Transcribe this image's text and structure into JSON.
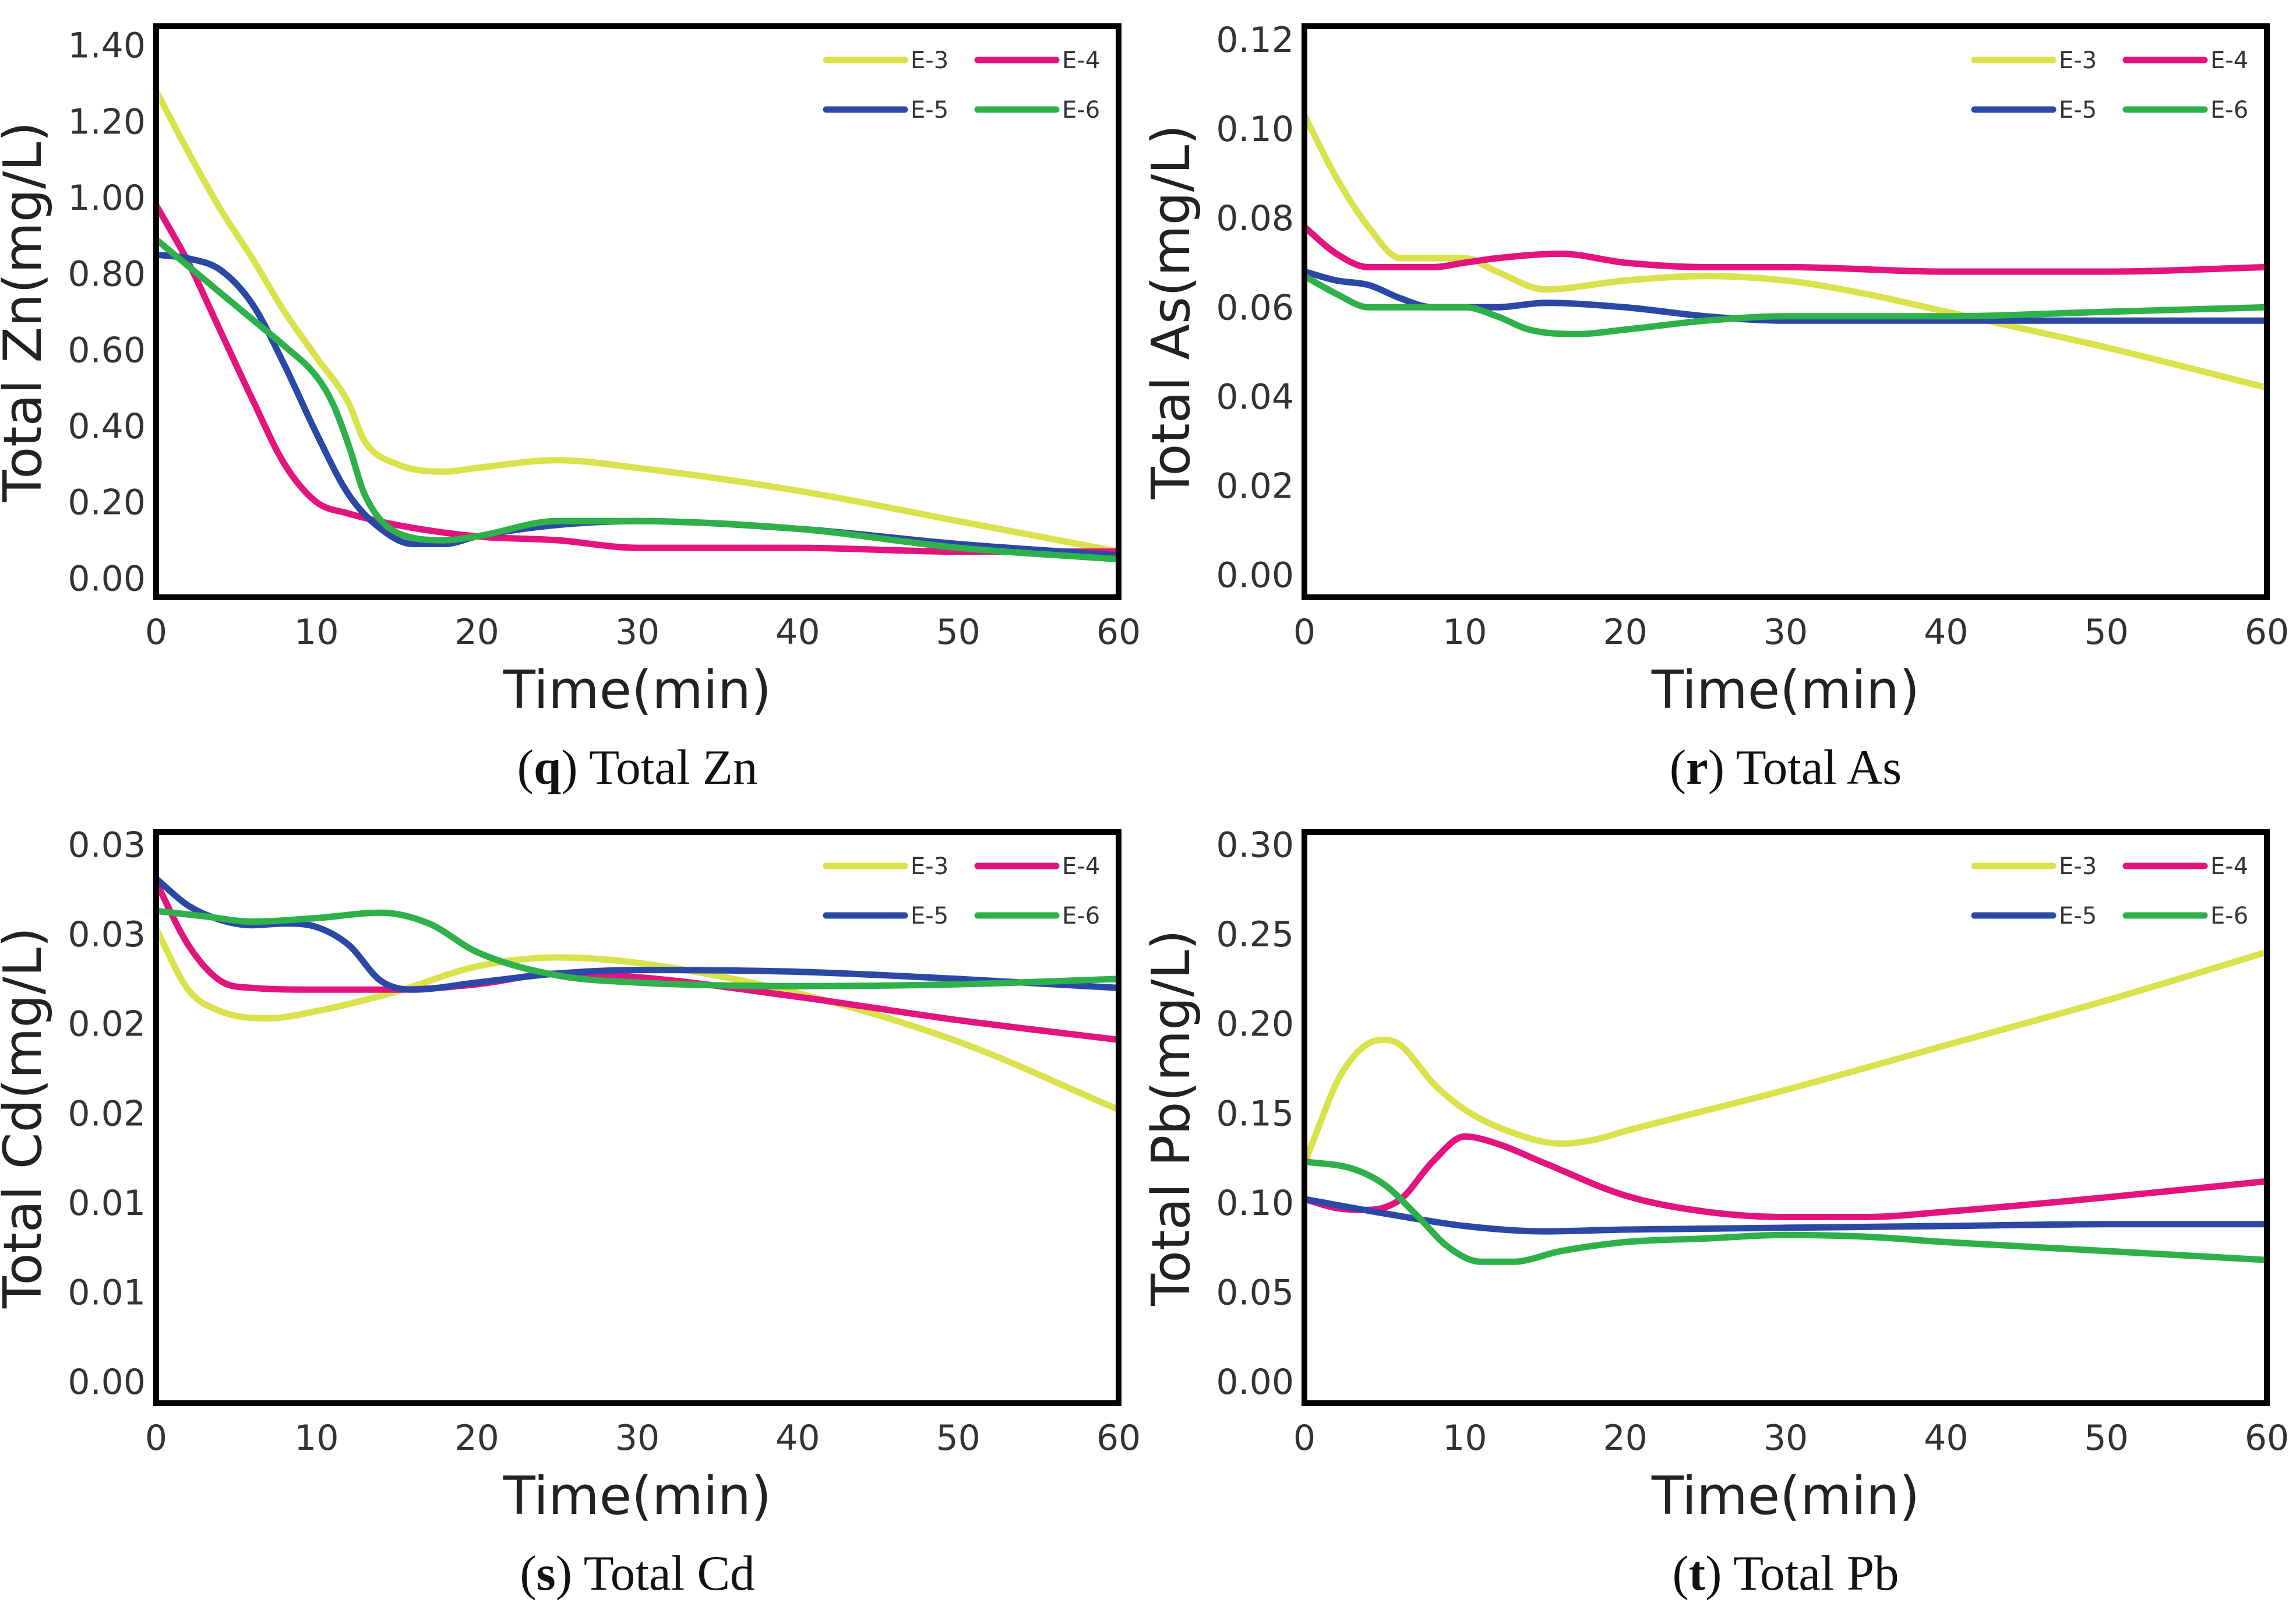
{
  "colors": {
    "E-3": "#d9e14b",
    "E-4": "#e3147d",
    "E-5": "#2b48a6",
    "E-6": "#2eb14a"
  },
  "chart_data": [
    {
      "type": "line",
      "caption_letter": "q",
      "caption_text": "Total Zn",
      "caption_open": "(",
      "caption_close": ")",
      "xlabel": "Time(min)",
      "ylabel": "Total Zn(mg/L)",
      "xlim": [
        0,
        60
      ],
      "ylim": [
        -0.05,
        1.45
      ],
      "xticks": [
        0,
        10,
        20,
        30,
        40,
        50,
        60
      ],
      "xtick_labels": [
        "0",
        "10",
        "20",
        "30",
        "40",
        "50",
        "60"
      ],
      "yticks": [
        0,
        0.2,
        0.4,
        0.6,
        0.8,
        1.0,
        1.2,
        1.4
      ],
      "ytick_labels": [
        "0.00",
        "0.20",
        "0.40",
        "0.60",
        "0.80",
        "1.00",
        "1.20",
        "1.40"
      ],
      "legend": [
        "E-3",
        "E-4",
        "E-5",
        "E-6"
      ],
      "series": [
        {
          "name": "E-3",
          "x": [
            0,
            2,
            4,
            6,
            8,
            10,
            12,
            13,
            15,
            18,
            20,
            25,
            30,
            40,
            50,
            60
          ],
          "values": [
            1.28,
            1.12,
            0.97,
            0.84,
            0.7,
            0.58,
            0.46,
            0.36,
            0.3,
            0.28,
            0.29,
            0.31,
            0.29,
            0.23,
            0.15,
            0.07
          ]
        },
        {
          "name": "E-4",
          "x": [
            0,
            2,
            4,
            6,
            8,
            10,
            12,
            15,
            20,
            25,
            30,
            35,
            40,
            50,
            60
          ],
          "values": [
            0.98,
            0.83,
            0.65,
            0.47,
            0.3,
            0.2,
            0.17,
            0.14,
            0.11,
            0.1,
            0.08,
            0.08,
            0.08,
            0.07,
            0.07
          ]
        },
        {
          "name": "E-5",
          "x": [
            0,
            2,
            4,
            6,
            8,
            10,
            12,
            14,
            16,
            18,
            20,
            25,
            30,
            40,
            50,
            60
          ],
          "values": [
            0.85,
            0.84,
            0.81,
            0.72,
            0.56,
            0.38,
            0.22,
            0.13,
            0.09,
            0.09,
            0.11,
            0.14,
            0.15,
            0.13,
            0.09,
            0.06
          ]
        },
        {
          "name": "E-6",
          "x": [
            0,
            2,
            4,
            6,
            8,
            10,
            11,
            12,
            13,
            15,
            18,
            20,
            25,
            30,
            40,
            50,
            60
          ],
          "values": [
            0.89,
            0.82,
            0.75,
            0.68,
            0.61,
            0.53,
            0.46,
            0.35,
            0.22,
            0.12,
            0.1,
            0.11,
            0.15,
            0.15,
            0.13,
            0.08,
            0.05
          ]
        }
      ]
    },
    {
      "type": "line",
      "caption_letter": "r",
      "caption_text": "Total As",
      "caption_open": "(",
      "caption_close": ")",
      "xlabel": "Time(min)",
      "ylabel": "Total As(mg/L)",
      "xlim": [
        0,
        60
      ],
      "ylim": [
        -0.005,
        0.123
      ],
      "xticks": [
        0,
        10,
        20,
        30,
        40,
        50,
        60
      ],
      "xtick_labels": [
        "0",
        "10",
        "20",
        "30",
        "40",
        "50",
        "60"
      ],
      "yticks": [
        0,
        0.02,
        0.04,
        0.06,
        0.08,
        0.1,
        0.12
      ],
      "ytick_labels": [
        "0.00",
        "0.02",
        "0.04",
        "0.06",
        "0.08",
        "0.10",
        "0.12"
      ],
      "legend": [
        "E-3",
        "E-4",
        "E-5",
        "E-6"
      ],
      "series": [
        {
          "name": "E-3",
          "x": [
            0,
            2,
            4,
            6,
            8,
            10,
            12,
            15,
            20,
            25,
            30,
            35,
            40,
            50,
            60
          ],
          "values": [
            0.103,
            0.089,
            0.078,
            0.071,
            0.071,
            0.071,
            0.068,
            0.064,
            0.066,
            0.067,
            0.066,
            0.063,
            0.059,
            0.051,
            0.042
          ]
        },
        {
          "name": "E-4",
          "x": [
            0,
            2,
            4,
            6,
            8,
            10,
            12,
            16,
            20,
            25,
            30,
            40,
            50,
            60
          ],
          "values": [
            0.078,
            0.072,
            0.069,
            0.069,
            0.069,
            0.07,
            0.071,
            0.072,
            0.07,
            0.069,
            0.069,
            0.068,
            0.068,
            0.069
          ]
        },
        {
          "name": "E-5",
          "x": [
            0,
            2,
            4,
            6,
            8,
            10,
            12,
            15,
            20,
            25,
            30,
            40,
            50,
            60
          ],
          "values": [
            0.068,
            0.066,
            0.065,
            0.062,
            0.06,
            0.06,
            0.06,
            0.061,
            0.06,
            0.058,
            0.057,
            0.057,
            0.057,
            0.057
          ]
        },
        {
          "name": "E-6",
          "x": [
            0,
            2,
            4,
            6,
            8,
            10,
            12,
            14,
            17,
            20,
            25,
            30,
            40,
            50,
            60
          ],
          "values": [
            0.067,
            0.063,
            0.06,
            0.06,
            0.06,
            0.06,
            0.058,
            0.055,
            0.054,
            0.055,
            0.057,
            0.058,
            0.058,
            0.059,
            0.06
          ]
        }
      ]
    },
    {
      "type": "line",
      "caption_letter": "s",
      "caption_text": "Total Cd",
      "caption_open": "(",
      "caption_close": ")",
      "xlabel": "Time(min)",
      "ylabel": "Total Cd(mg/L)",
      "xlim": [
        0,
        60
      ],
      "ylim": [
        -0.0012,
        0.0307
      ],
      "xticks": [
        0,
        10,
        20,
        30,
        40,
        50,
        60
      ],
      "xtick_labels": [
        "0",
        "10",
        "20",
        "30",
        "40",
        "50",
        "60"
      ],
      "yticks": [
        0,
        0.005,
        0.01,
        0.015,
        0.02,
        0.025,
        0.03
      ],
      "ytick_labels": [
        "0.00",
        "0.01",
        "0.01",
        "0.02",
        "0.02",
        "0.03",
        "0.03"
      ],
      "legend": [
        "E-3",
        "E-4",
        "E-5",
        "E-6"
      ],
      "series": [
        {
          "name": "E-3",
          "x": [
            0,
            2,
            4,
            7,
            10,
            15,
            20,
            25,
            30,
            40,
            50,
            60
          ],
          "values": [
            0.0253,
            0.0219,
            0.0207,
            0.0203,
            0.0207,
            0.0218,
            0.0232,
            0.0237,
            0.0234,
            0.0217,
            0.019,
            0.0152
          ]
        },
        {
          "name": "E-4",
          "x": [
            0,
            2,
            4,
            6,
            10,
            15,
            20,
            25,
            30,
            40,
            50,
            60
          ],
          "values": [
            0.0279,
            0.0244,
            0.0224,
            0.022,
            0.0219,
            0.0219,
            0.0222,
            0.0228,
            0.0226,
            0.0215,
            0.0202,
            0.0191
          ]
        },
        {
          "name": "E-5",
          "x": [
            0,
            2,
            4,
            6,
            8,
            10,
            12,
            14,
            16,
            20,
            25,
            30,
            40,
            50,
            60
          ],
          "values": [
            0.0281,
            0.0266,
            0.0258,
            0.0255,
            0.0256,
            0.0254,
            0.0244,
            0.0224,
            0.0219,
            0.0223,
            0.0228,
            0.023,
            0.0229,
            0.0225,
            0.022
          ]
        },
        {
          "name": "E-6",
          "x": [
            0,
            3,
            6,
            10,
            14,
            17,
            20,
            25,
            30,
            40,
            50,
            60
          ],
          "values": [
            0.0263,
            0.026,
            0.0257,
            0.0259,
            0.0262,
            0.0256,
            0.024,
            0.0227,
            0.0223,
            0.0221,
            0.0222,
            0.0225
          ]
        }
      ]
    },
    {
      "type": "line",
      "caption_letter": "t",
      "caption_text": "Total Pb",
      "caption_open": "(",
      "caption_close": ")",
      "xlabel": "Time(min)",
      "ylabel": "Total Pb(mg/L)",
      "xlim": [
        0,
        60
      ],
      "ylim": [
        -0.012,
        0.307
      ],
      "xticks": [
        0,
        10,
        20,
        30,
        40,
        50,
        60
      ],
      "xtick_labels": [
        "0",
        "10",
        "20",
        "30",
        "40",
        "50",
        "60"
      ],
      "yticks": [
        0,
        0.05,
        0.1,
        0.15,
        0.2,
        0.25,
        0.3
      ],
      "ytick_labels": [
        "0.00",
        "0.05",
        "0.10",
        "0.15",
        "0.20",
        "0.25",
        "0.30"
      ],
      "legend": [
        "E-3",
        "E-4",
        "E-5",
        "E-6"
      ],
      "series": [
        {
          "name": "E-3",
          "x": [
            0,
            1,
            2,
            3,
            4,
            5,
            6,
            7,
            8,
            10,
            13,
            16,
            18,
            20,
            30,
            40,
            50,
            60
          ],
          "values": [
            0.122,
            0.145,
            0.167,
            0.181,
            0.189,
            0.191,
            0.188,
            0.178,
            0.167,
            0.152,
            0.139,
            0.133,
            0.135,
            0.14,
            0.163,
            0.188,
            0.213,
            0.24
          ]
        },
        {
          "name": "E-4",
          "x": [
            0,
            2,
            4,
            6,
            8,
            10,
            12,
            15,
            20,
            25,
            30,
            35,
            40,
            50,
            60
          ],
          "values": [
            0.102,
            0.097,
            0.096,
            0.102,
            0.123,
            0.137,
            0.133,
            0.122,
            0.104,
            0.095,
            0.092,
            0.092,
            0.095,
            0.103,
            0.112
          ]
        },
        {
          "name": "E-5",
          "x": [
            0,
            5,
            10,
            15,
            20,
            30,
            40,
            50,
            60
          ],
          "values": [
            0.102,
            0.094,
            0.087,
            0.084,
            0.085,
            0.086,
            0.087,
            0.088,
            0.088
          ]
        },
        {
          "name": "E-6",
          "x": [
            0,
            3,
            5,
            7,
            9,
            11,
            13,
            16,
            20,
            25,
            30,
            35,
            40,
            50,
            60
          ],
          "values": [
            0.123,
            0.119,
            0.11,
            0.093,
            0.075,
            0.067,
            0.067,
            0.073,
            0.078,
            0.08,
            0.082,
            0.081,
            0.078,
            0.073,
            0.068
          ]
        }
      ]
    }
  ]
}
